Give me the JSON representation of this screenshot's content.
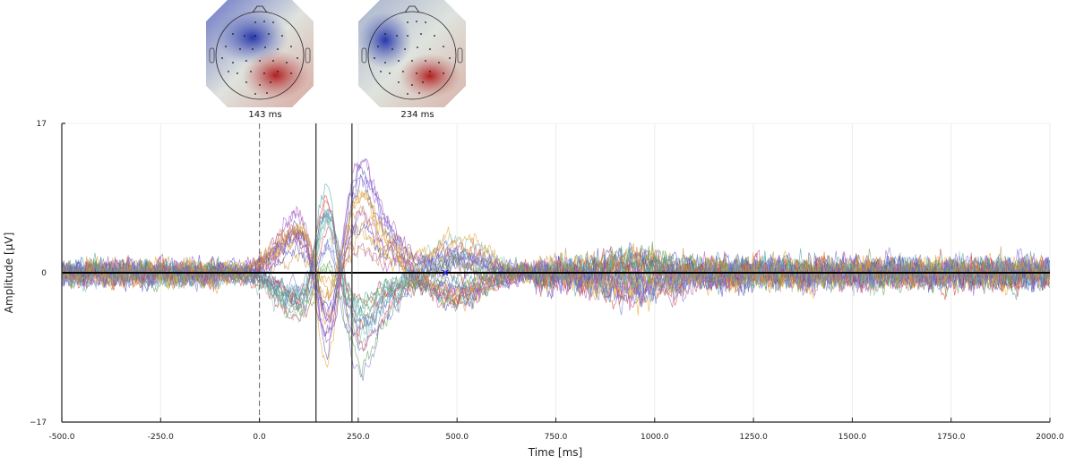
{
  "chart_data": {
    "type": "line",
    "title": "",
    "xlabel": "Time [ms]",
    "ylabel": "Amplitude [μV]",
    "xlim": [
      -500,
      2000
    ],
    "ylim": [
      -17,
      17
    ],
    "xticks": [
      -500,
      -250,
      0,
      250,
      500,
      750,
      1000,
      1250,
      1500,
      1750,
      2000
    ],
    "xtick_labels": [
      "-500.0",
      "-250.0",
      "0.0",
      "250.0",
      "500.0",
      "750.0",
      "1000.0",
      "1250.0",
      "1500.0",
      "1750.0",
      "2000.0"
    ],
    "yticks": [
      -17,
      0,
      17
    ],
    "ytick_labels": [
      "−17",
      "0",
      "17"
    ],
    "grid": true,
    "n_channels": 32,
    "description": "Butterfly plot of 32 EEG channel ERP traces with topographic maps at selected latencies",
    "stimulus_onset_ms": 0,
    "marker_lines_ms": [
      143,
      234
    ],
    "cursor_marker": {
      "x": 470,
      "y": 0
    },
    "components": [
      {
        "latency_ms": 143,
        "peak_range_uV": [
          -14,
          6
        ]
      },
      {
        "latency_ms": 234,
        "peak_range_uV": [
          -13,
          16
        ]
      },
      {
        "latency_ms": 500,
        "peak_range_uV": [
          -8,
          10
        ]
      },
      {
        "latency_ms": 1000,
        "peak_range_uV": [
          -6,
          0
        ]
      }
    ],
    "baseline_noise_uV": 2.5,
    "series_colors": [
      "#e2a023",
      "#46a0a8",
      "#8a5fd6",
      "#d03b3b",
      "#4a4ac0",
      "#5fa04a",
      "#b04fb0",
      "#8fc0c0",
      "#c98a3a",
      "#7070d0"
    ],
    "mean_line_color": "#000000"
  },
  "topomaps": [
    {
      "label": "143 ms",
      "latency_ms": 143
    },
    {
      "label": "234 ms",
      "latency_ms": 234
    }
  ]
}
